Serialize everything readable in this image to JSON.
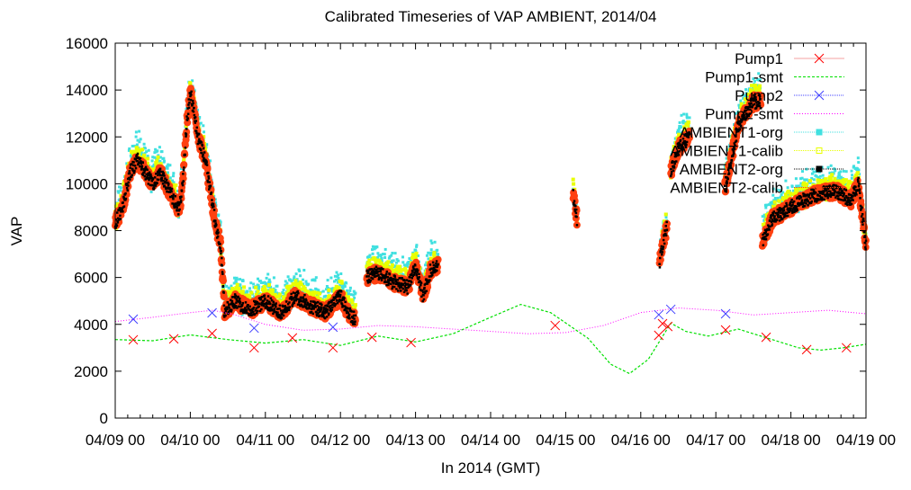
{
  "chart_data": {
    "type": "line",
    "title": "Calibrated Timeseries of VAP AMBIENT, 2014/04",
    "xlabel": "In 2014 (GMT)",
    "ylabel": "VAP",
    "xlim_days": [
      0,
      10
    ],
    "ylim": [
      0,
      16000
    ],
    "grid": false,
    "legend_position": "top-right",
    "x_tick_labels": [
      "04/09 00",
      "04/10 00",
      "04/11 00",
      "04/12 00",
      "04/13 00",
      "04/14 00",
      "04/15 00",
      "04/16 00",
      "04/17 00",
      "04/18 00",
      "04/19 00"
    ],
    "y_tick_labels": [
      "0",
      "2000",
      "4000",
      "6000",
      "8000",
      "10000",
      "12000",
      "14000",
      "16000"
    ],
    "y_ticks": [
      0,
      2000,
      4000,
      6000,
      8000,
      10000,
      12000,
      14000,
      16000
    ],
    "series": [
      {
        "name": "Pump1",
        "color": "#ff0000",
        "line_color": "#f4a0a0",
        "style": "points-x",
        "points": [
          [
            0.24,
            3340
          ],
          [
            0.78,
            3380
          ],
          [
            1.29,
            3610
          ],
          [
            1.85,
            3000
          ],
          [
            2.36,
            3420
          ],
          [
            2.9,
            3000
          ],
          [
            3.42,
            3450
          ],
          [
            3.94,
            3220
          ],
          [
            5.86,
            3950
          ],
          [
            7.24,
            3530
          ],
          [
            7.29,
            4030
          ],
          [
            7.36,
            3910
          ],
          [
            8.13,
            3760
          ],
          [
            8.67,
            3450
          ],
          [
            9.21,
            2920
          ],
          [
            9.74,
            3000
          ]
        ]
      },
      {
        "name": "Pump1-smt",
        "color": "#00e000",
        "style": "dashed",
        "points": [
          [
            0,
            3350
          ],
          [
            0.5,
            3300
          ],
          [
            1,
            3550
          ],
          [
            1.5,
            3350
          ],
          [
            2,
            3200
          ],
          [
            2.5,
            3350
          ],
          [
            3,
            3100
          ],
          [
            3.5,
            3500
          ],
          [
            4,
            3250
          ],
          [
            4.5,
            3600
          ],
          [
            5,
            4300
          ],
          [
            5.4,
            4850
          ],
          [
            5.8,
            4500
          ],
          [
            6.3,
            3400
          ],
          [
            6.6,
            2300
          ],
          [
            6.85,
            1900
          ],
          [
            7.1,
            2500
          ],
          [
            7.4,
            4050
          ],
          [
            7.6,
            3700
          ],
          [
            7.9,
            3500
          ],
          [
            8.3,
            3800
          ],
          [
            8.7,
            3400
          ],
          [
            9.1,
            3000
          ],
          [
            9.4,
            2900
          ],
          [
            9.7,
            3000
          ],
          [
            10,
            3150
          ]
        ]
      },
      {
        "name": "Pump2",
        "color": "#4040ff",
        "style": "points-x",
        "points": [
          [
            0.24,
            4220
          ],
          [
            1.29,
            4490
          ],
          [
            1.85,
            3840
          ],
          [
            2.9,
            3880
          ],
          [
            7.24,
            4410
          ],
          [
            7.4,
            4640
          ],
          [
            8.13,
            4450
          ]
        ]
      },
      {
        "name": "Pump2-smt",
        "color": "#ff00ff",
        "style": "dotted",
        "points": [
          [
            0,
            4120
          ],
          [
            0.5,
            4300
          ],
          [
            1,
            4500
          ],
          [
            1.3,
            4600
          ],
          [
            1.6,
            4400
          ],
          [
            2,
            4000
          ],
          [
            2.5,
            3750
          ],
          [
            3,
            3800
          ],
          [
            3.5,
            3950
          ],
          [
            4,
            3900
          ],
          [
            5,
            3700
          ],
          [
            5.5,
            3600
          ],
          [
            6,
            3650
          ],
          [
            6.5,
            3950
          ],
          [
            7,
            4500
          ],
          [
            7.5,
            4700
          ],
          [
            8,
            4600
          ],
          [
            8.5,
            4400
          ],
          [
            9,
            4500
          ],
          [
            9.5,
            4600
          ],
          [
            10,
            4450
          ]
        ]
      },
      {
        "name": "AMBIENT1-org",
        "color": "#40e0e0",
        "style": "dense",
        "offset": 900
      },
      {
        "name": "AMBIENT1-calib",
        "color": "#e8ff00",
        "style": "dense",
        "offset": 500
      },
      {
        "name": "AMBIENT2-org",
        "color": "#000000",
        "style": "dense",
        "offset": 0
      },
      {
        "name": "AMBIENT2-calib",
        "color": "#ff4010",
        "style": "dense-main",
        "offset": 0
      }
    ],
    "ambient_segments": [
      [
        [
          0,
          8300
        ],
        [
          0.1,
          9000
        ],
        [
          0.2,
          10500
        ],
        [
          0.3,
          11000
        ],
        [
          0.4,
          10500
        ],
        [
          0.5,
          10000
        ],
        [
          0.6,
          10500
        ],
        [
          0.7,
          9800
        ],
        [
          0.8,
          9200
        ],
        [
          0.85,
          8800
        ],
        [
          0.9,
          10000
        ],
        [
          0.95,
          12500
        ],
        [
          1.0,
          14000
        ],
        [
          1.05,
          13000
        ],
        [
          1.1,
          12000
        ],
        [
          1.2,
          11000
        ],
        [
          1.3,
          9000
        ],
        [
          1.35,
          8000
        ],
        [
          1.4,
          7500
        ],
        [
          1.45,
          5000
        ]
      ],
      [
        [
          1.45,
          4500
        ],
        [
          1.6,
          5000
        ],
        [
          1.8,
          4600
        ],
        [
          2.0,
          5000
        ],
        [
          2.2,
          4500
        ],
        [
          2.4,
          5200
        ],
        [
          2.6,
          4800
        ],
        [
          2.8,
          4500
        ],
        [
          3.0,
          5200
        ],
        [
          3.1,
          4500
        ],
        [
          3.2,
          4200
        ]
      ],
      [
        [
          3.35,
          6000
        ],
        [
          3.5,
          6200
        ],
        [
          3.7,
          5800
        ],
        [
          3.9,
          5600
        ],
        [
          4.0,
          6500
        ],
        [
          4.1,
          5200
        ],
        [
          4.2,
          6300
        ],
        [
          4.3,
          6500
        ]
      ],
      [
        [
          6.1,
          9500
        ],
        [
          6.15,
          8500
        ]
      ],
      [
        [
          7.25,
          6600
        ],
        [
          7.3,
          7500
        ],
        [
          7.35,
          8200
        ]
      ],
      [
        [
          7.4,
          10500
        ],
        [
          7.5,
          11500
        ],
        [
          7.65,
          12000
        ]
      ],
      [
        [
          8.12,
          9800
        ],
        [
          8.3,
          12500
        ],
        [
          8.5,
          13500
        ],
        [
          8.6,
          13500
        ]
      ],
      [
        [
          8.62,
          7500
        ],
        [
          8.75,
          8500
        ],
        [
          9.0,
          9000
        ],
        [
          9.3,
          9500
        ],
        [
          9.6,
          9700
        ],
        [
          9.8,
          9300
        ],
        [
          9.9,
          10000
        ],
        [
          10,
          7300
        ]
      ]
    ]
  }
}
